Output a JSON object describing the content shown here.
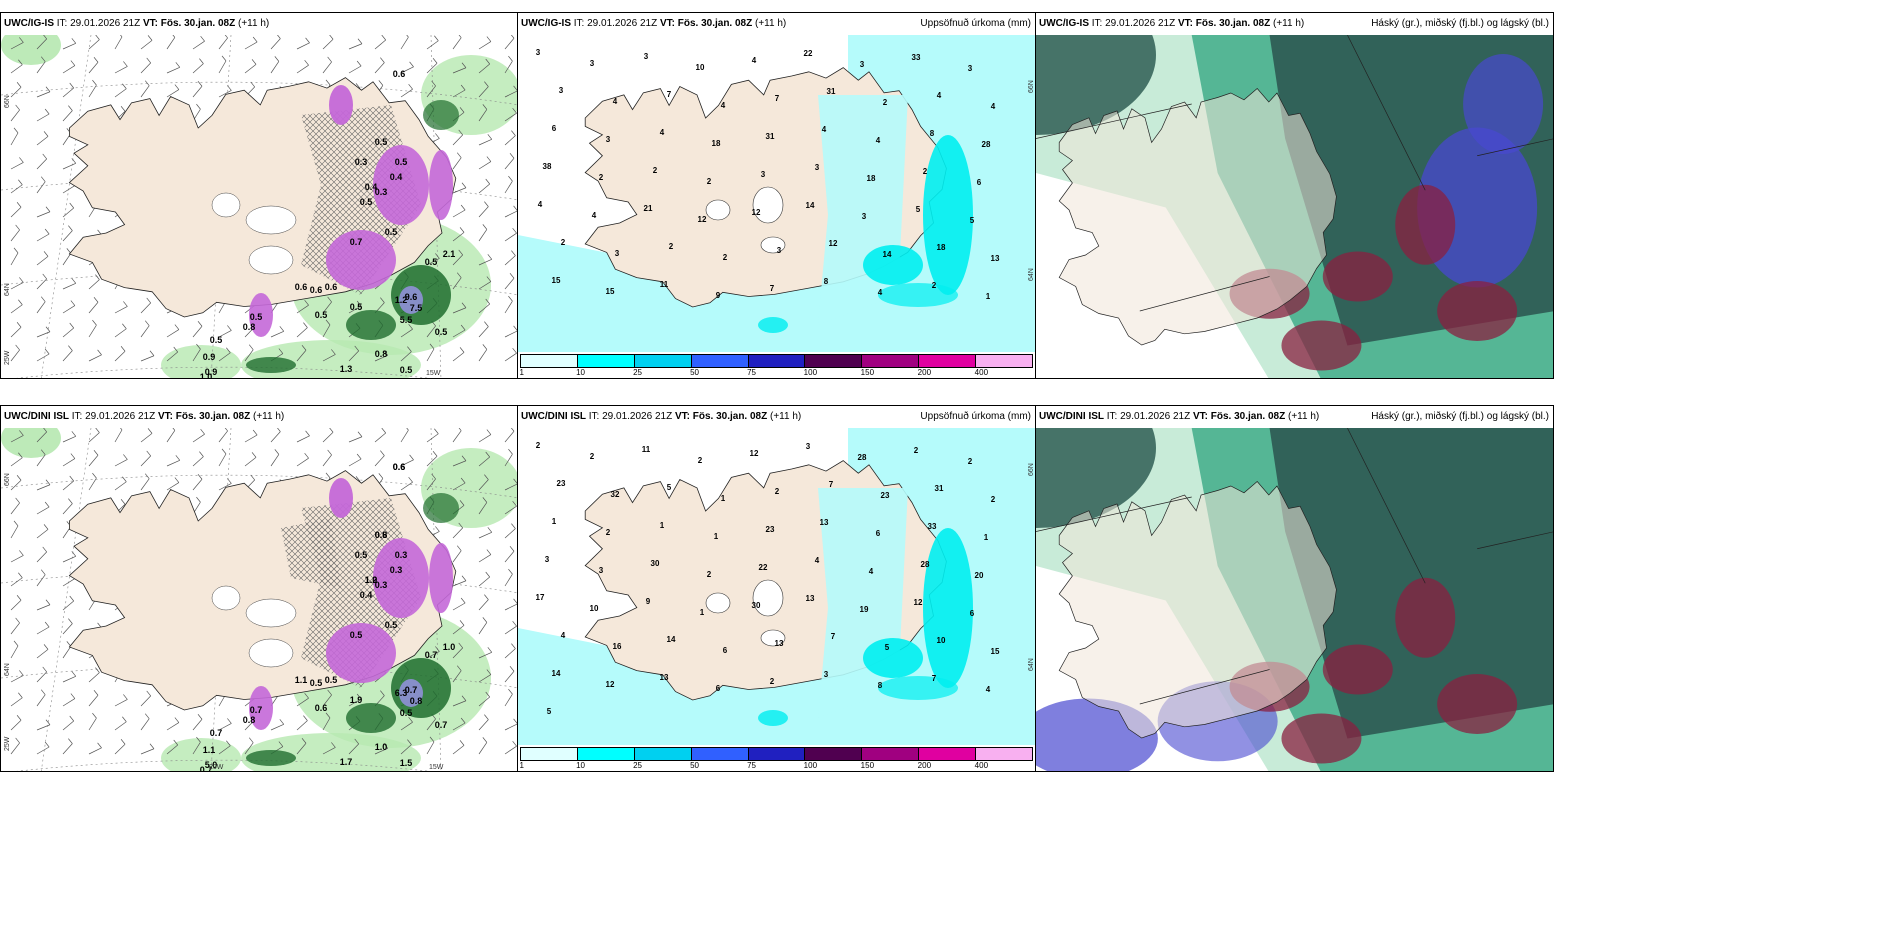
{
  "panels": [
    {
      "id": "top-left",
      "model": "UWC/IG-IS",
      "it_label": "IT:",
      "it_value": "29.01.2026 21Z",
      "vt_label": "VT:",
      "vt_value": "Fös. 30.jan. 08Z",
      "lead": "(+11 h)",
      "right_title": "",
      "axis": {
        "lat_66": "66N",
        "lat_64": "64N",
        "lon_25": "25W",
        "lon_15": "15W"
      },
      "values": [
        "0.6",
        "0.5",
        "0.4",
        "0.3",
        "0.5",
        "0.4",
        "0.3",
        "0.5",
        "0.7",
        "0.5",
        "0.6",
        "0.6",
        "0.6",
        "0.5",
        "0.9",
        "1.2",
        "0.5",
        "9.6",
        "7.5",
        "5.5",
        "0.5",
        "0.5",
        "0.8",
        "0.9",
        "1.0",
        "0.5",
        "0.5",
        "0.8",
        "2.1",
        "0.5",
        "1.3"
      ]
    },
    {
      "id": "top-middle",
      "model": "UWC/IG-IS",
      "it_label": "IT:",
      "it_value": "29.01.2026 21Z",
      "vt_label": "VT:",
      "vt_value": "Fös. 30.jan. 08Z",
      "lead": "(+11 h)",
      "right_title": "Uppsöfnuð úrkoma (mm)",
      "axis": {
        "lat_66": "66N",
        "lat_64": "64N"
      },
      "values": [
        "3",
        "3",
        "3",
        "10",
        "4",
        "22",
        "3",
        "33",
        "3",
        "3",
        "4",
        "7",
        "4",
        "7",
        "31",
        "2",
        "4",
        "4",
        "6",
        "3",
        "4",
        "18",
        "31",
        "4",
        "4",
        "8",
        "28",
        "38",
        "2",
        "2",
        "2",
        "3",
        "3",
        "18",
        "2",
        "6",
        "4",
        "4",
        "21",
        "12",
        "12",
        "14",
        "3",
        "5",
        "5",
        "2",
        "3",
        "2",
        "2",
        "3",
        "12",
        "14",
        "18",
        "13",
        "15",
        "15",
        "11",
        "9",
        "7",
        "8",
        "4",
        "2",
        "1"
      ]
    },
    {
      "id": "top-right",
      "model": "UWC/IG-IS",
      "it_label": "IT:",
      "it_value": "29.01.2026 21Z",
      "vt_label": "VT:",
      "vt_value": "Fös. 30.jan. 08Z",
      "lead": "(+11 h)",
      "right_title": "Háský (gr.), miðský (fj.bl.) og lágský (bl.)",
      "values": []
    },
    {
      "id": "bottom-left",
      "model": "UWC/DINI ISL",
      "it_label": "IT:",
      "it_value": "29.01.2026 21Z",
      "vt_label": "VT:",
      "vt_value": "Fös. 30.jan. 08Z",
      "lead": "(+11 h)",
      "right_title": "",
      "axis": {
        "lat_66": "66N",
        "lat_64": "64N",
        "lon_25": "25W",
        "lon_20": "20W",
        "lon_15": "15W"
      },
      "values": [
        "0.6",
        "0.8",
        "1.2",
        "0.5",
        "0.3",
        "0.3",
        "0.3",
        "0.4",
        "0.5",
        "0.5",
        "0.5",
        "1.1",
        "0.5",
        "1.9",
        "5.0",
        "6.3",
        "0.7",
        "0.7",
        "0.8",
        "0.5",
        "0.6",
        "0.7",
        "1.0",
        "1.1",
        "0.7",
        "0.7",
        "0.7",
        "0.8",
        "1.0",
        "1.5",
        "1.7",
        "0.6",
        "0.6",
        "1.0"
      ]
    },
    {
      "id": "bottom-middle",
      "model": "UWC/DINI ISL",
      "it_label": "IT:",
      "it_value": "29.01.2026 21Z",
      "vt_label": "VT:",
      "vt_value": "Fös. 30.jan. 08Z",
      "lead": "(+11 h)",
      "right_title": "Uppsöfnuð úrkoma (mm)",
      "axis": {
        "lat_66": "66N",
        "lat_64": "64N"
      },
      "values": [
        "2",
        "2",
        "11",
        "2",
        "12",
        "3",
        "28",
        "2",
        "2",
        "23",
        "32",
        "5",
        "1",
        "2",
        "7",
        "23",
        "31",
        "2",
        "1",
        "2",
        "1",
        "1",
        "23",
        "13",
        "6",
        "33",
        "1",
        "3",
        "3",
        "30",
        "2",
        "22",
        "4",
        "4",
        "28",
        "20",
        "17",
        "10",
        "9",
        "1",
        "30",
        "13",
        "19",
        "12",
        "6",
        "4",
        "16",
        "14",
        "6",
        "13",
        "7",
        "5",
        "10",
        "15",
        "14",
        "12",
        "13",
        "6",
        "2",
        "3",
        "8",
        "7",
        "4",
        "5"
      ]
    },
    {
      "id": "bottom-right",
      "model": "UWC/DINI ISL",
      "it_label": "IT:",
      "it_value": "29.01.2026 21Z",
      "vt_label": "VT:",
      "vt_value": "Fös. 30.jan. 08Z",
      "lead": "(+11 h)",
      "right_title": "Háský (gr.), miðský (fj.bl.) og lágský (bl.)",
      "values": []
    }
  ],
  "legend": {
    "ticks": [
      "1",
      "10",
      "25",
      "50",
      "75",
      "100",
      "150",
      "200",
      "400"
    ],
    "colors": [
      "#e0ffff",
      "#00ffff",
      "#00d0f0",
      "#3060ff",
      "#2020c0",
      "#500050",
      "#a00080",
      "#e000a0",
      "#f8b0f0"
    ]
  },
  "colors": {
    "land": "#f5e8da",
    "sea_precip_light": "#b5fbfb",
    "sea_precip_mid": "#00eef0",
    "cloud_dark": "#2f5e55",
    "cloud_mid": "#48b08e",
    "cloud_light": "#c8ebd8",
    "precip_purple": "#c468d8",
    "precip_green": "#1f6d2e",
    "precip_lightgreen": "#b6e8b0",
    "rain_red": "#8a2040",
    "cloud_blue": "#4848d0"
  }
}
